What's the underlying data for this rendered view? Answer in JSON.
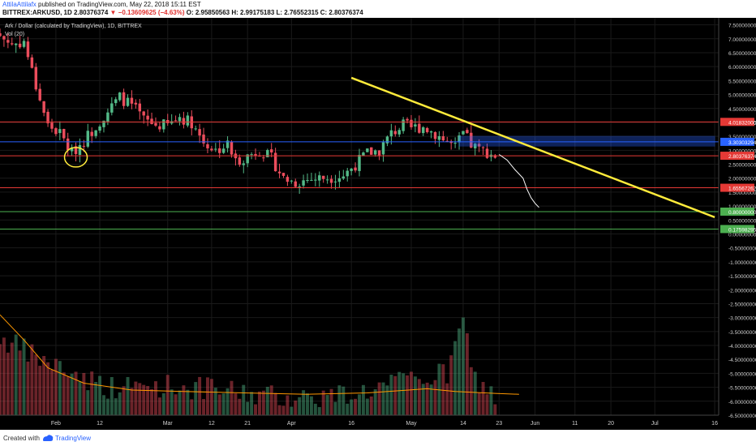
{
  "header": {
    "author": "AttilaAttilafx",
    "published": "published on TradingView.com, May 22, 2018 15:11 EST",
    "symbol": "BITTREX:ARKUSD, 1D",
    "last": "2.80376374",
    "arrow": "▼",
    "change": "−0.13609625 (−4.63%)",
    "ohlc": "O: 2.95850563  H: 2.99175183  L: 2.76552315  C: 2.80376374"
  },
  "legend": {
    "title": "Ark / Dollar (calculated by TradingView), 1D, BITTREX",
    "indicator": "Vol (20)"
  },
  "footer": {
    "created": "Created with",
    "brand": "TradingView"
  },
  "colors": {
    "background": "#000000",
    "up": "#53b987",
    "down": "#eb4d5c",
    "trend": "#ffeb3b",
    "red_level": "#e53935",
    "green_level": "#4caf50",
    "zone": "#2962ff",
    "ma": "#ff9800",
    "projection": "#ffffff"
  },
  "chart_data": {
    "type": "candlestick",
    "title": "Ark / Dollar (calculated by TradingView), 1D, BITTREX",
    "xlabel": "",
    "ylabel": "",
    "ylim": [
      -6.5,
      7.75
    ],
    "y_ticks": [
      "7.50000000",
      "7.00000000",
      "6.50000000",
      "6.00000000",
      "5.50000000",
      "5.00000000",
      "4.50000000",
      "4.00000000",
      "3.50000000",
      "3.00000000",
      "2.50000000",
      "2.00000000",
      "1.50000000",
      "1.00000000",
      "0.50000000",
      "0.00000000",
      "-0.50000000",
      "-1.00000000",
      "-1.50000000",
      "-2.00000000",
      "-2.50000000",
      "-3.00000000",
      "-3.50000000",
      "-4.00000000",
      "-4.50000000",
      "-5.00000000",
      "-5.50000000",
      "-6.00000000",
      "-6.50000000"
    ],
    "x_start": "2018-01-18",
    "x_end": "2018-07-17",
    "x_ticks": [
      {
        "date": "2018-02-01",
        "label": "Feb"
      },
      {
        "date": "2018-02-12",
        "label": "12"
      },
      {
        "date": "2018-03-01",
        "label": "Mar"
      },
      {
        "date": "2018-03-12",
        "label": "12"
      },
      {
        "date": "2018-03-21",
        "label": "21"
      },
      {
        "date": "2018-04-01",
        "label": "Apr"
      },
      {
        "date": "2018-04-16",
        "label": "16"
      },
      {
        "date": "2018-05-01",
        "label": "May"
      },
      {
        "date": "2018-05-14",
        "label": "14"
      },
      {
        "date": "2018-05-23",
        "label": "23"
      },
      {
        "date": "2018-06-01",
        "label": "Jun"
      },
      {
        "date": "2018-06-11",
        "label": "11"
      },
      {
        "date": "2018-06-20",
        "label": "20"
      },
      {
        "date": "2018-07-01",
        "label": "Jul"
      },
      {
        "date": "2018-07-16",
        "label": "16"
      }
    ],
    "close_anchors": [
      [
        "2018-01-18",
        7.1
      ],
      [
        "2018-01-21",
        6.8
      ],
      [
        "2018-01-24",
        6.9
      ],
      [
        "2018-01-27",
        5.3
      ],
      [
        "2018-01-30",
        3.9
      ],
      [
        "2018-02-02",
        3.6
      ],
      [
        "2018-02-05",
        2.9
      ],
      [
        "2018-02-07",
        3.2
      ],
      [
        "2018-02-10",
        3.7
      ],
      [
        "2018-02-14",
        4.4
      ],
      [
        "2018-02-17",
        4.9
      ],
      [
        "2018-02-20",
        4.6
      ],
      [
        "2018-02-23",
        4.1
      ],
      [
        "2018-02-26",
        3.9
      ],
      [
        "2018-03-01",
        3.9
      ],
      [
        "2018-03-04",
        4.2
      ],
      [
        "2018-03-07",
        4.0
      ],
      [
        "2018-03-10",
        3.3
      ],
      [
        "2018-03-13",
        3.0
      ],
      [
        "2018-03-16",
        3.2
      ],
      [
        "2018-03-18",
        2.6
      ],
      [
        "2018-03-21",
        2.8
      ],
      [
        "2018-03-24",
        3.0
      ],
      [
        "2018-03-27",
        2.7
      ],
      [
        "2018-03-30",
        2.0
      ],
      [
        "2018-04-02",
        1.85
      ],
      [
        "2018-04-05",
        1.95
      ],
      [
        "2018-04-08",
        2.0
      ],
      [
        "2018-04-11",
        2.05
      ],
      [
        "2018-04-14",
        2.1
      ],
      [
        "2018-04-17",
        2.5
      ],
      [
        "2018-04-20",
        2.9
      ],
      [
        "2018-04-23",
        3.0
      ],
      [
        "2018-04-26",
        3.6
      ],
      [
        "2018-04-29",
        3.9
      ],
      [
        "2018-05-01",
        3.8
      ],
      [
        "2018-05-04",
        3.85
      ],
      [
        "2018-05-07",
        3.6
      ],
      [
        "2018-05-10",
        3.3
      ],
      [
        "2018-05-12",
        3.1
      ],
      [
        "2018-05-14",
        3.6
      ],
      [
        "2018-05-16",
        3.2
      ],
      [
        "2018-05-18",
        3.0
      ],
      [
        "2018-05-20",
        2.95
      ],
      [
        "2018-05-22",
        2.8
      ]
    ],
    "volume_anchors": [
      [
        "2018-01-18",
        -3.9
      ],
      [
        "2018-01-27",
        -4.6
      ],
      [
        "2018-02-06",
        -5.2
      ],
      [
        "2018-02-15",
        -5.7
      ],
      [
        "2018-03-01",
        -5.6
      ],
      [
        "2018-03-15",
        -5.8
      ],
      [
        "2018-03-28",
        -6.0
      ],
      [
        "2018-04-10",
        -6.0
      ],
      [
        "2018-04-20",
        -5.8
      ],
      [
        "2018-05-01",
        -5.4
      ],
      [
        "2018-05-10",
        -5.2
      ],
      [
        "2018-05-14",
        -3.3
      ],
      [
        "2018-05-17",
        -5.4
      ],
      [
        "2018-05-22",
        -6.0
      ]
    ],
    "volume_floor": -6.5,
    "volume_ma": [
      [
        "2018-01-18",
        -2.9
      ],
      [
        "2018-01-24",
        -3.8
      ],
      [
        "2018-01-30",
        -4.8
      ],
      [
        "2018-02-08",
        -5.35
      ],
      [
        "2018-02-20",
        -5.6
      ],
      [
        "2018-03-05",
        -5.65
      ],
      [
        "2018-03-20",
        -5.7
      ],
      [
        "2018-04-05",
        -5.75
      ],
      [
        "2018-04-20",
        -5.7
      ],
      [
        "2018-05-05",
        -5.55
      ],
      [
        "2018-05-12",
        -5.65
      ],
      [
        "2018-05-22",
        -5.72
      ],
      [
        "2018-05-28",
        -5.75
      ]
    ],
    "horizontal_levels": [
      {
        "price": 4.01832,
        "color": "red",
        "label": "4.01832000"
      },
      {
        "price": 3.30303294,
        "color": "blue",
        "label": "3.30303294"
      },
      {
        "price": 2.80376374,
        "color": "red",
        "label": "2.80376374"
      },
      {
        "price": 1.65567262,
        "color": "red",
        "label": "1.65567262"
      },
      {
        "price": 0.8,
        "color": "green",
        "label": "0.80000000"
      },
      {
        "price": 0.17598295,
        "color": "green",
        "label": "0.17598295"
      }
    ],
    "trendline": {
      "x1": "2018-04-16",
      "y1": 5.6,
      "x2": "2018-07-16",
      "y2": 0.6
    },
    "zone": {
      "x1": "2018-05-13",
      "x2": "2018-07-16",
      "y_top": 3.5,
      "y_bottom": 3.15
    },
    "projection_path": [
      [
        "2018-05-23",
        2.85
      ],
      [
        "2018-05-25",
        2.65
      ],
      [
        "2018-05-27",
        2.3
      ],
      [
        "2018-05-29",
        2.0
      ],
      [
        "2018-05-30",
        1.6
      ],
      [
        "2018-05-31",
        1.3
      ],
      [
        "2018-06-01",
        1.1
      ],
      [
        "2018-06-02",
        0.95
      ]
    ],
    "circle_annotation": {
      "date": "2018-02-06",
      "price": 2.75
    }
  }
}
